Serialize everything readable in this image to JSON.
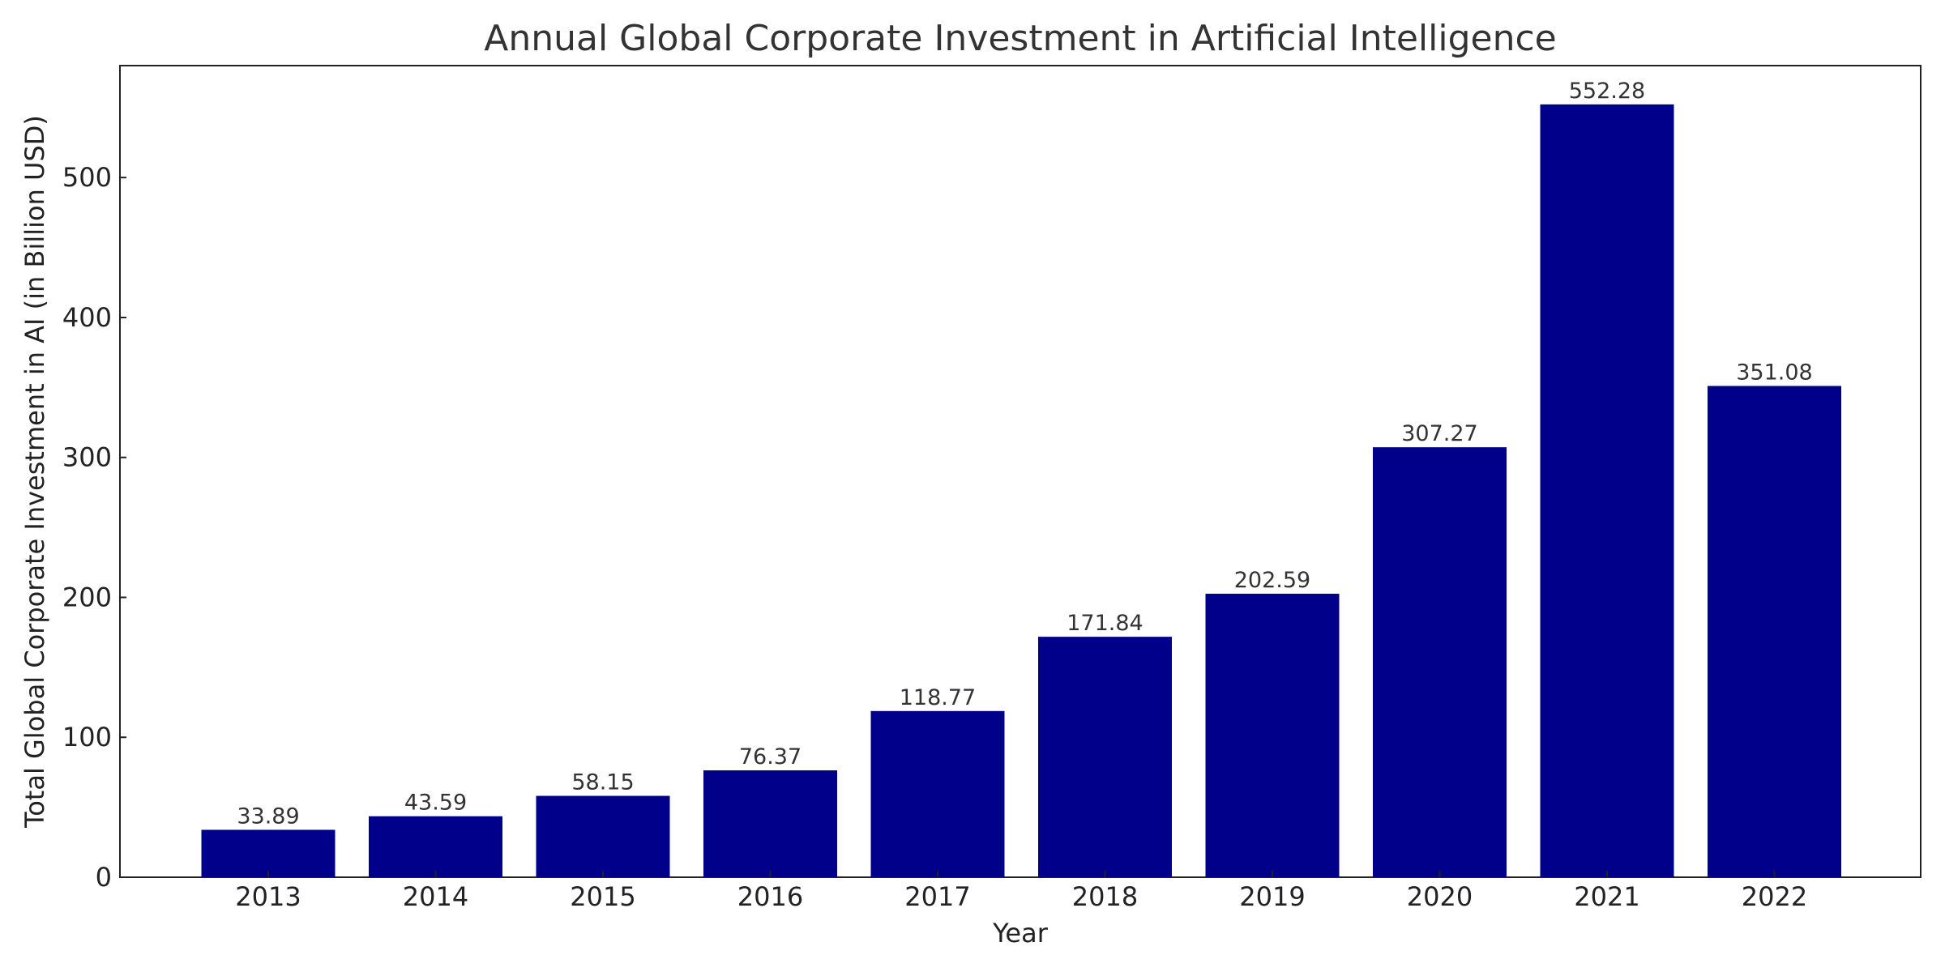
{
  "chart_data": {
    "type": "bar",
    "title": "Annual Global Corporate Investment in Artificial Intelligence",
    "xlabel": "Year",
    "ylabel": "Total Global Corporate Investment in AI (in Billion USD)",
    "categories": [
      "2013",
      "2014",
      "2015",
      "2016",
      "2017",
      "2018",
      "2019",
      "2020",
      "2021",
      "2022"
    ],
    "values": [
      33.89,
      43.59,
      58.15,
      76.37,
      118.77,
      171.84,
      202.59,
      307.27,
      552.28,
      351.08
    ],
    "data_labels": [
      "33.89",
      "43.59",
      "58.15",
      "76.37",
      "118.77",
      "171.84",
      "202.59",
      "307.27",
      "552.28",
      "351.08"
    ],
    "ylim": [
      0,
      580
    ],
    "yticks": [
      0,
      100,
      200,
      300,
      400,
      500
    ],
    "bar_color": "#00008b",
    "grid": false,
    "legend": "none"
  }
}
